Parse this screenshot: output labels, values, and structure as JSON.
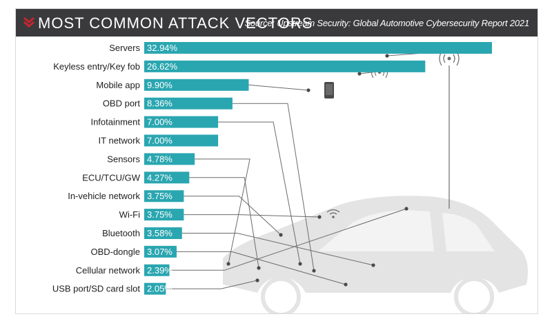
{
  "header": {
    "title": "MOST COMMON ATTACK VECTORS",
    "source": "Source: Upstream Security: Global Automotive Cybersecurity Report 2021"
  },
  "colors": {
    "bar": "#2aa6b0",
    "header_bg": "#3a3a3d",
    "accent": "#c8252c",
    "lines": "#6a6a6a",
    "car": "#e4e4e4"
  },
  "icons": [
    "chevron-down-icon",
    "radio-tower-icon",
    "key-fob-icon",
    "smartphone-icon",
    "wifi-icon",
    "car-silhouette"
  ],
  "chart_data": {
    "type": "bar",
    "orientation": "horizontal",
    "categories": [
      "Servers",
      "Keyless entry/Key fob",
      "Mobile app",
      "OBD port",
      "Infotainment",
      "IT network",
      "Sensors",
      "ECU/TCU/GW",
      "In-vehicle network",
      "Wi-Fi",
      "Bluetooth",
      "OBD-dongle",
      "Cellular network",
      "USB port/SD card slot"
    ],
    "values": [
      32.94,
      26.62,
      9.9,
      8.36,
      7.0,
      7.0,
      4.78,
      4.27,
      3.75,
      3.75,
      3.58,
      3.07,
      2.39,
      2.05
    ],
    "value_labels": [
      "32.94%",
      "26.62%",
      "9.90%",
      "8.36%",
      "7.00%",
      "7.00%",
      "4.78%",
      "4.27%",
      "3.75%",
      "3.75%",
      "3.58%",
      "3.07%",
      "2.39%",
      "2.05%"
    ],
    "xlabel": "",
    "ylabel": "",
    "grid": false,
    "legend": "none"
  }
}
